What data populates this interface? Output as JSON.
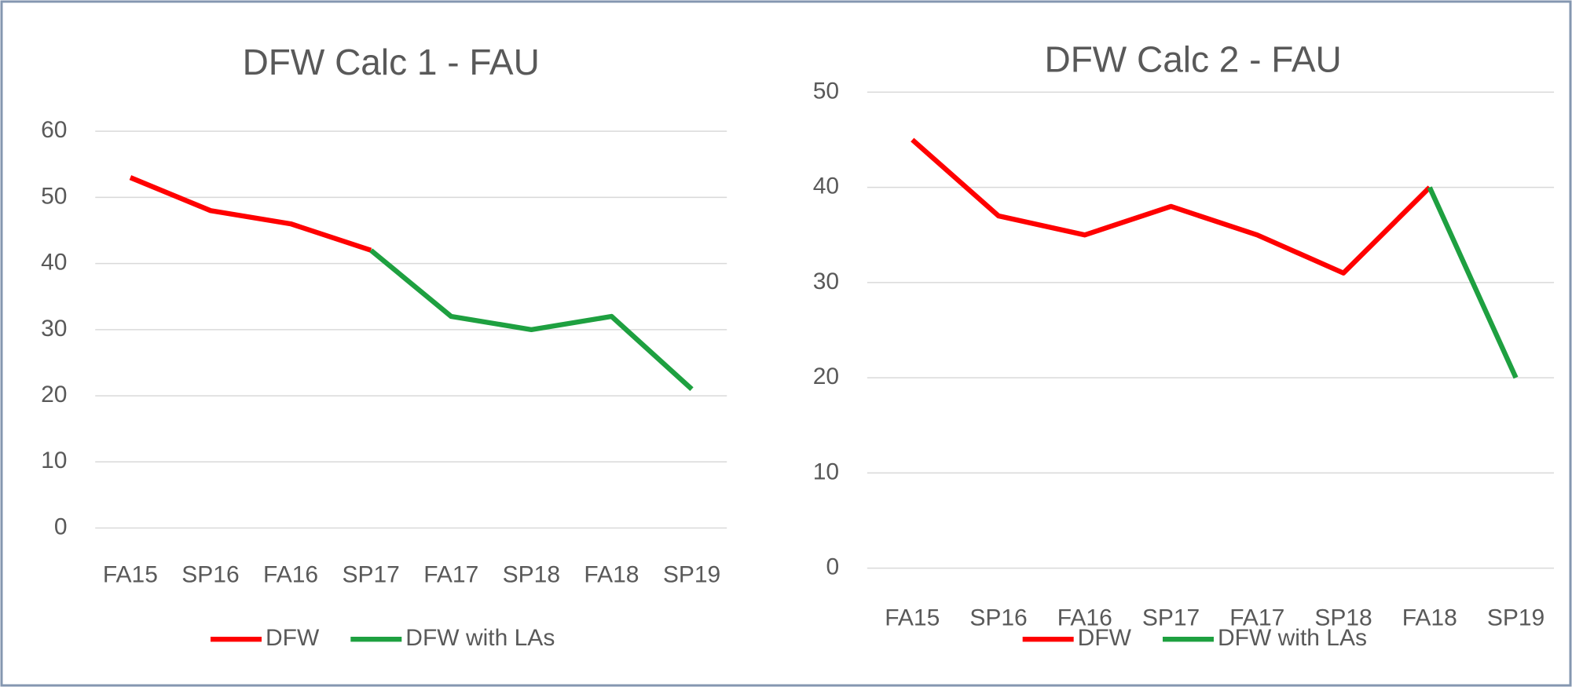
{
  "chart_data": [
    {
      "type": "line",
      "title": "DFW Calc 1 - FAU",
      "categories": [
        "FA15",
        "SP16",
        "FA16",
        "SP17",
        "FA17",
        "SP18",
        "FA18",
        "SP19"
      ],
      "series": [
        {
          "name": "DFW",
          "color": "#ff0000",
          "values": [
            53,
            48,
            46,
            42,
            null,
            null,
            null,
            null
          ]
        },
        {
          "name": "DFW with LAs",
          "color": "#1ea040",
          "values": [
            null,
            null,
            null,
            42,
            32,
            30,
            32,
            21
          ]
        }
      ],
      "ylim": [
        0,
        60
      ],
      "yticks": [
        0,
        10,
        20,
        30,
        40,
        50,
        60
      ],
      "grid": true,
      "legend": "bottom"
    },
    {
      "type": "line",
      "title": "DFW Calc 2 - FAU",
      "categories": [
        "FA15",
        "SP16",
        "FA16",
        "SP17",
        "FA17",
        "SP18",
        "FA18",
        "SP19"
      ],
      "series": [
        {
          "name": "DFW",
          "color": "#ff0000",
          "values": [
            45,
            37,
            35,
            38,
            35,
            31,
            40,
            null
          ]
        },
        {
          "name": "DFW with LAs",
          "color": "#1ea040",
          "values": [
            null,
            null,
            null,
            null,
            null,
            null,
            40,
            20
          ]
        }
      ],
      "ylim": [
        0,
        50
      ],
      "yticks": [
        0,
        10,
        20,
        30,
        40,
        50
      ],
      "grid": true,
      "legend": "bottom"
    }
  ]
}
